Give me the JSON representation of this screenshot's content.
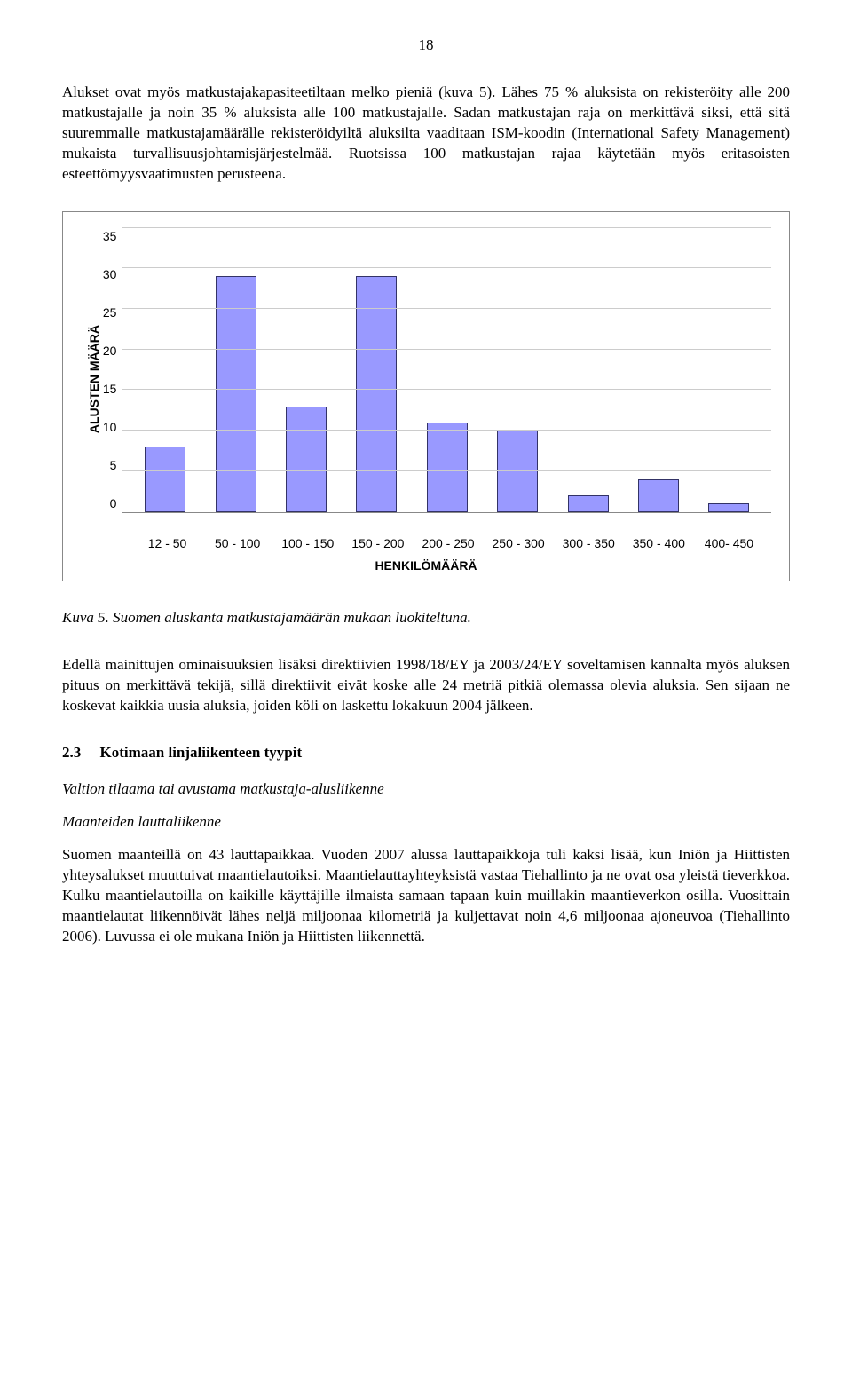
{
  "page_number": "18",
  "para1": "Alukset ovat myös matkustajakapasiteetiltaan melko pieniä (kuva 5). Lähes 75 % aluksista on rekisteröity alle 200 matkustajalle ja noin 35 % aluksista alle 100 matkustajalle. Sadan matkustajan raja on merkittävä siksi, että sitä suuremmalle matkustajamäärälle rekisteröidyiltä aluksilta vaaditaan ISM-koodin (International Safety Management) mukaista turvallisuusjohtamisjärjestelmää. Ruotsissa 100 matkustajan rajaa käytetään myös eritasoisten esteettömyysvaatimusten perusteena.",
  "chart": {
    "y_label": "ALUSTEN MÄÄRÄ",
    "x_label": "HENKILÖMÄÄRÄ",
    "y_max": 35,
    "y_ticks": [
      "35",
      "30",
      "25",
      "20",
      "15",
      "10",
      "5",
      "0"
    ],
    "bar_color": "#9999ff",
    "bar_border": "#333366",
    "grid_color": "#cccccc",
    "categories": [
      "12 - 50",
      "50 - 100",
      "100 - 150",
      "150 - 200",
      "200 - 250",
      "250 - 300",
      "300 - 350",
      "350 - 400",
      "400- 450"
    ],
    "values": [
      8,
      29,
      13,
      29,
      11,
      10,
      2,
      4,
      1
    ]
  },
  "caption": "Kuva 5. Suomen aluskanta matkustajamäärän mukaan luokiteltuna.",
  "para2": "Edellä mainittujen ominaisuuksien lisäksi direktiivien 1998/18/EY ja 2003/24/EY soveltamisen kannalta myös aluksen pituus on merkittävä tekijä, sillä direktiivit eivät koske alle 24 metriä pitkiä olemassa olevia aluksia. Sen sijaan ne koskevat kaikkia uusia aluksia, joiden köli on laskettu lokakuun 2004 jälkeen.",
  "section": {
    "number": "2.3",
    "title": "Kotimaan linjaliikenteen tyypit"
  },
  "sub1": "Valtion tilaama tai avustama matkustaja-alusliikenne",
  "sub2": "Maanteiden lauttaliikenne",
  "para3": "Suomen maanteillä on 43 lauttapaikkaa. Vuoden 2007 alussa lauttapaikkoja tuli kaksi lisää, kun Iniön ja Hiittisten yhteysalukset muuttuivat maantielautoiksi. Maantielauttayhteyksistä vastaa Tiehallinto ja ne ovat osa yleistä tieverkkoa. Kulku maantielautoilla on kaikille käyttäjille ilmaista samaan tapaan kuin muillakin maantieverkon osilla. Vuosittain maantielautat liikennöivät lähes neljä miljoonaa kilometriä ja kuljettavat noin 4,6 miljoonaa ajoneuvoa (Tiehallinto 2006). Luvussa ei ole mukana Iniön ja Hiittisten liikennettä."
}
